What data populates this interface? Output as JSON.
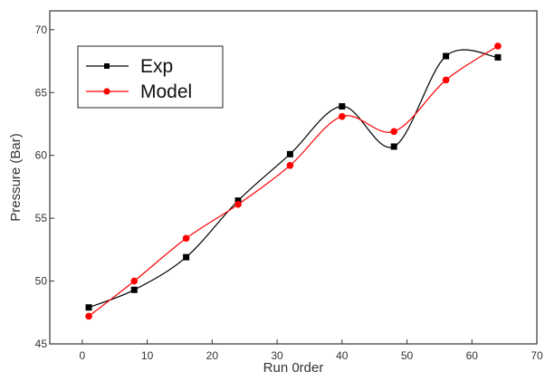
{
  "chart_data": {
    "type": "line",
    "xlabel": "Run 0rder",
    "ylabel": "Pressure (Bar)",
    "xlim": [
      -5,
      70
    ],
    "ylim": [
      45,
      71.5
    ],
    "xticks": [
      0,
      10,
      20,
      30,
      40,
      50,
      60,
      70
    ],
    "yticks": [
      45,
      50,
      55,
      60,
      65,
      70
    ],
    "grid": false,
    "legend_position": "top-left",
    "x": [
      1,
      8,
      16,
      24,
      32,
      40,
      48,
      56,
      64
    ],
    "series": [
      {
        "name": "Exp",
        "color": "#000000",
        "marker": "square",
        "values": [
          47.9,
          49.3,
          51.9,
          56.4,
          60.1,
          63.9,
          60.7,
          67.9,
          67.8
        ]
      },
      {
        "name": "Model",
        "color": "#ff0000",
        "marker": "circle",
        "values": [
          47.2,
          50.0,
          53.4,
          56.1,
          59.2,
          63.1,
          61.9,
          66.0,
          68.7
        ]
      }
    ]
  }
}
